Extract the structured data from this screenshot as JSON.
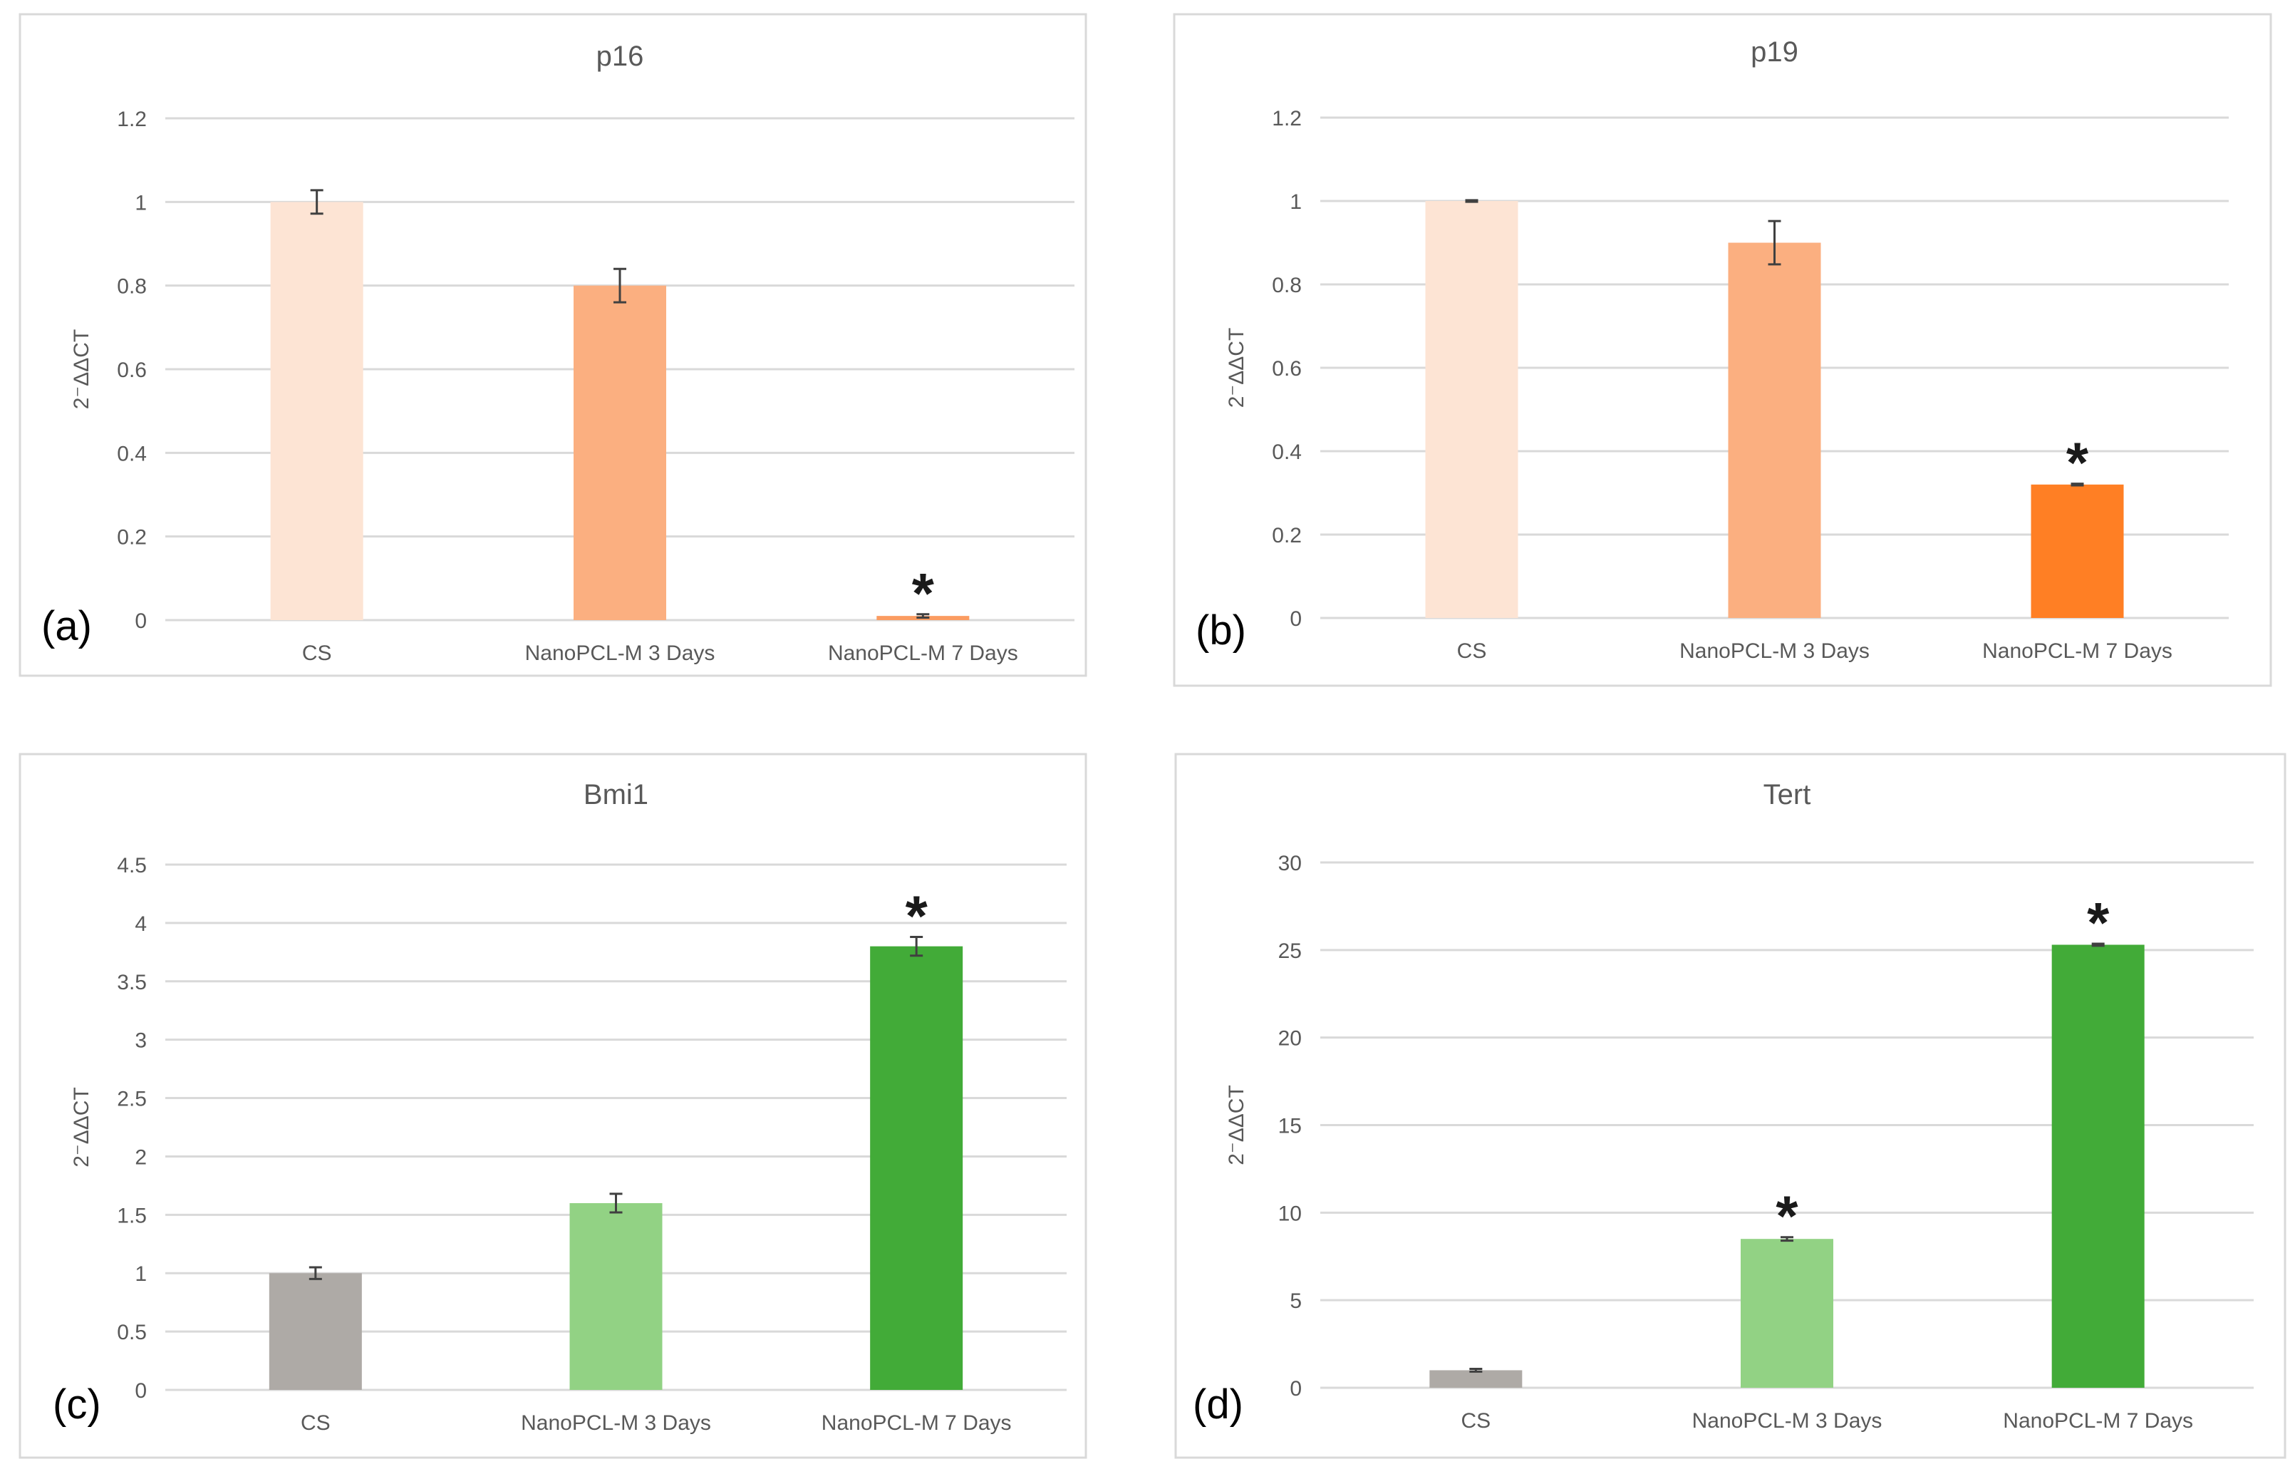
{
  "chart_data": [
    {
      "type": "bar",
      "panel_label": "(a)",
      "title": "p16",
      "ylabel": "2⁻ΔΔCT",
      "categories": [
        "CS",
        "NanoPCL-M 3 Days",
        "NanoPCL-M 7 Days"
      ],
      "values": [
        1.0,
        0.8,
        0.01
      ],
      "errors": [
        0.028,
        0.04,
        0.004
      ],
      "significant": [
        false,
        false,
        true
      ],
      "significance_marker": "*",
      "colors": [
        "#fde4d4",
        "#fbaf80",
        "#fb9c61"
      ],
      "ylim": [
        0,
        1.2
      ],
      "yticks": [
        "0",
        "0.2",
        "0.4",
        "0.6",
        "0.8",
        "1",
        "1.2"
      ],
      "grid": true
    },
    {
      "type": "bar",
      "panel_label": "(b)",
      "title": "p19",
      "ylabel": "2⁻ΔΔCT",
      "categories": [
        "CS",
        "NanoPCL-M 3 Days",
        "NanoPCL-M 7 Days"
      ],
      "values": [
        1.0,
        0.9,
        0.32
      ],
      "errors": [
        0.002,
        0.052,
        0.002
      ],
      "significant": [
        false,
        false,
        true
      ],
      "significance_marker": "*",
      "colors": [
        "#fde4d4",
        "#fbaf80",
        "#ff7f24"
      ],
      "ylim": [
        0,
        1.2
      ],
      "yticks": [
        "0",
        "0.2",
        "0.4",
        "0.6",
        "0.8",
        "1",
        "1.2"
      ],
      "grid": true
    },
    {
      "type": "bar",
      "panel_label": "(c)",
      "title": "Bmi1",
      "ylabel": "2⁻ΔΔCT",
      "categories": [
        "CS",
        "NanoPCL-M 3 Days",
        "NanoPCL-M 7 Days"
      ],
      "values": [
        1.0,
        1.6,
        3.8
      ],
      "errors": [
        0.05,
        0.08,
        0.08
      ],
      "significant": [
        false,
        false,
        true
      ],
      "significance_marker": "*",
      "colors": [
        "#aeaaa6",
        "#92d284",
        "#42ab38"
      ],
      "ylim": [
        0,
        4.5
      ],
      "yticks": [
        "0",
        "0.5",
        "1",
        "1.5",
        "2",
        "2.5",
        "3",
        "3.5",
        "4",
        "4.5"
      ],
      "grid": true
    },
    {
      "type": "bar",
      "panel_label": "(d)",
      "title": "Tert",
      "ylabel": "2⁻ΔΔCT",
      "categories": [
        "CS",
        "NanoPCL-M 3 Days",
        "NanoPCL-M 7 Days"
      ],
      "values": [
        1.0,
        8.5,
        25.3
      ],
      "errors": [
        0.08,
        0.1,
        0.06
      ],
      "significant": [
        false,
        true,
        true
      ],
      "significance_marker": "*",
      "colors": [
        "#aeaaa6",
        "#92d284",
        "#42ab38"
      ],
      "ylim": [
        0,
        30
      ],
      "yticks": [
        "0",
        "5",
        "10",
        "15",
        "20",
        "25",
        "30"
      ],
      "grid": true
    }
  ]
}
